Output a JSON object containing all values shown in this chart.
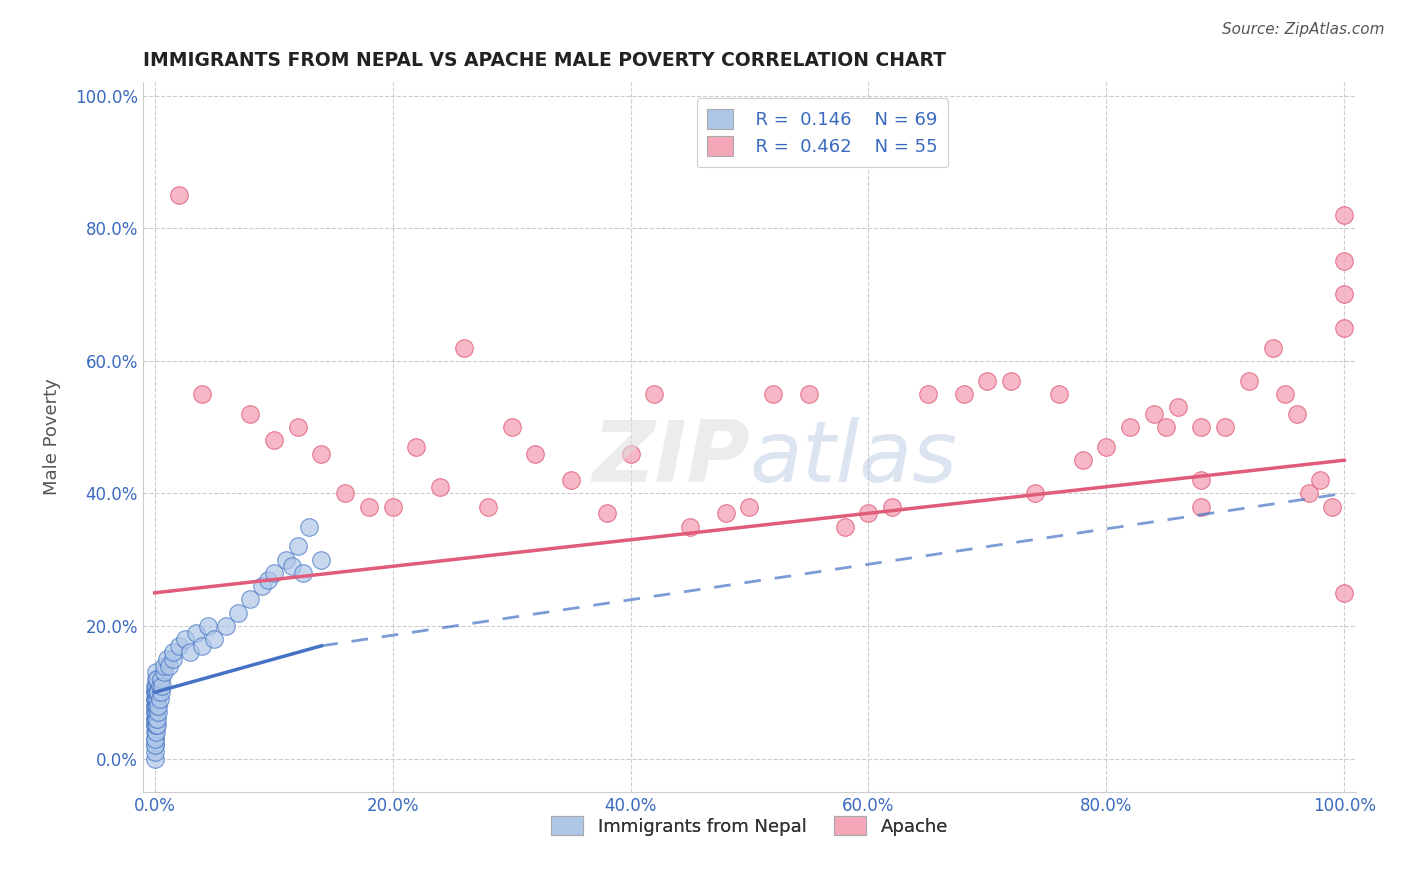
{
  "title": "IMMIGRANTS FROM NEPAL VS APACHE MALE POVERTY CORRELATION CHART",
  "source": "Source: ZipAtlas.com",
  "xlabel_ticks": [
    "0.0%",
    "20.0%",
    "40.0%",
    "60.0%",
    "80.0%",
    "100.0%"
  ],
  "xlabel_vals": [
    0,
    20,
    40,
    60,
    80,
    100
  ],
  "ylabel": "Male Poverty",
  "ylabel_ticks": [
    "0.0%",
    "20.0%",
    "40.0%",
    "60.0%",
    "80.0%",
    "100.0%"
  ],
  "ylabel_vals": [
    0,
    20,
    40,
    60,
    80,
    100
  ],
  "xlim": [
    -1,
    101
  ],
  "ylim": [
    -5,
    102
  ],
  "nepal_color": "#aec6e8",
  "apache_color": "#f4a7b9",
  "nepal_line_color": "#4472c4",
  "apache_line_color": "#e05c7a",
  "nepal_x": [
    0.05,
    0.05,
    0.05,
    0.05,
    0.05,
    0.05,
    0.05,
    0.05,
    0.05,
    0.05,
    0.05,
    0.05,
    0.05,
    0.05,
    0.05,
    0.05,
    0.05,
    0.05,
    0.05,
    0.05,
    0.1,
    0.1,
    0.1,
    0.1,
    0.1,
    0.1,
    0.1,
    0.1,
    0.1,
    0.1,
    0.2,
    0.2,
    0.2,
    0.2,
    0.2,
    0.2,
    0.3,
    0.3,
    0.3,
    0.4,
    0.4,
    0.5,
    0.5,
    0.6,
    0.8,
    0.8,
    1.0,
    1.2,
    1.5,
    1.5,
    2.0,
    2.5,
    3.0,
    3.5,
    4.0,
    4.5,
    5.0,
    6.0,
    7.0,
    8.0,
    9.0,
    9.5,
    10.0,
    11.0,
    11.5,
    12.0,
    12.5,
    13.0,
    14.0
  ],
  "nepal_y": [
    2,
    3,
    4,
    5,
    6,
    7,
    8,
    9,
    10,
    11,
    0,
    1,
    2,
    3,
    5,
    6,
    7,
    8,
    9,
    10,
    4,
    5,
    6,
    7,
    8,
    9,
    10,
    11,
    12,
    13,
    5,
    6,
    8,
    9,
    10,
    12,
    7,
    8,
    10,
    9,
    11,
    10,
    12,
    11,
    13,
    14,
    15,
    14,
    15,
    16,
    17,
    18,
    16,
    19,
    17,
    20,
    18,
    20,
    22,
    24,
    26,
    27,
    28,
    30,
    29,
    32,
    28,
    35,
    30
  ],
  "apache_x": [
    2,
    4,
    8,
    10,
    12,
    14,
    16,
    18,
    20,
    22,
    24,
    26,
    28,
    30,
    32,
    35,
    38,
    40,
    42,
    45,
    48,
    50,
    52,
    55,
    58,
    60,
    62,
    65,
    68,
    70,
    72,
    74,
    76,
    78,
    80,
    82,
    84,
    85,
    86,
    88,
    88,
    88,
    90,
    92,
    94,
    95,
    96,
    97,
    98,
    99,
    100,
    100,
    100,
    100,
    100
  ],
  "apache_y": [
    85,
    55,
    52,
    48,
    50,
    46,
    40,
    38,
    38,
    47,
    41,
    62,
    38,
    50,
    46,
    42,
    37,
    46,
    55,
    35,
    37,
    38,
    55,
    55,
    35,
    37,
    38,
    55,
    55,
    57,
    57,
    40,
    55,
    45,
    47,
    50,
    52,
    50,
    53,
    50,
    42,
    38,
    50,
    57,
    62,
    55,
    52,
    40,
    42,
    38,
    70,
    75,
    65,
    82,
    25
  ],
  "nepal_line_x0": 0,
  "nepal_line_y0": 10,
  "nepal_line_x1": 14,
  "nepal_line_y1": 17,
  "nepal_dash_x0": 14,
  "nepal_dash_y0": 17,
  "nepal_dash_x1": 100,
  "nepal_dash_y1": 40,
  "apache_line_x0": 0,
  "apache_line_y0": 25,
  "apache_line_x1": 100,
  "apache_line_y1": 45
}
